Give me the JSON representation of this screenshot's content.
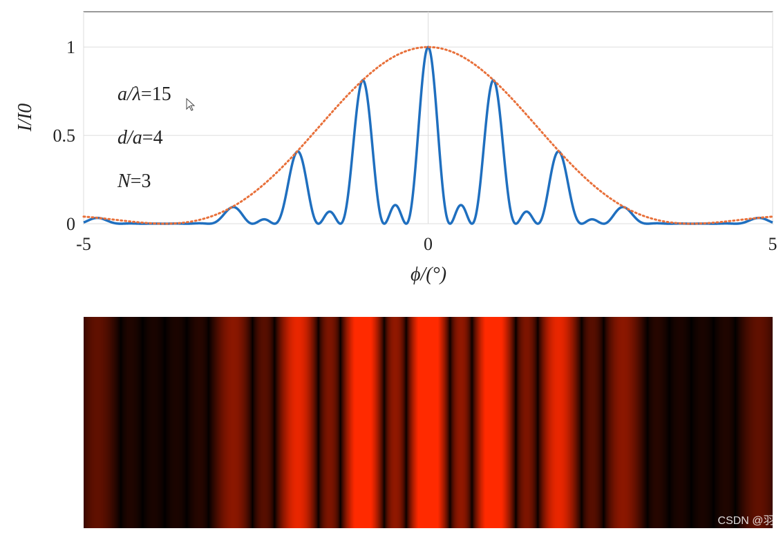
{
  "chart_data": [
    {
      "type": "line",
      "xlabel": "ϕ/(°)",
      "ylabel": "I/I0",
      "xlim": [
        -5,
        5
      ],
      "ylim": [
        0,
        1.2
      ],
      "x_ticks": [
        "-5",
        "0",
        "5"
      ],
      "y_ticks": [
        "0",
        "0.5",
        "1"
      ],
      "grid": true,
      "annotations": [
        {
          "var": "a/λ",
          "value": "15"
        },
        {
          "var": "d/a",
          "value": "4"
        },
        {
          "var": "N",
          "value": "3"
        }
      ],
      "params": {
        "a_over_lambda": 15,
        "d_over_a": 4,
        "N": 3
      },
      "series": [
        {
          "style": "solid",
          "color": "#1f6fbf",
          "description_points": {
            "x": [
              -3.0,
              -2.0,
              -1.0,
              0.0,
              1.0,
              2.0,
              3.0
            ],
            "y": [
              0.09,
              0.41,
              0.81,
              1.0,
              0.81,
              0.41,
              0.09
            ]
          }
        },
        {
          "style": "dotted",
          "color": "#e8703a"
        }
      ]
    },
    {
      "type": "heatmap",
      "colormap": [
        "#000000",
        "#ff2a00"
      ],
      "x_range": [
        -5,
        5
      ]
    }
  ],
  "watermark": "CSDN @羽t"
}
